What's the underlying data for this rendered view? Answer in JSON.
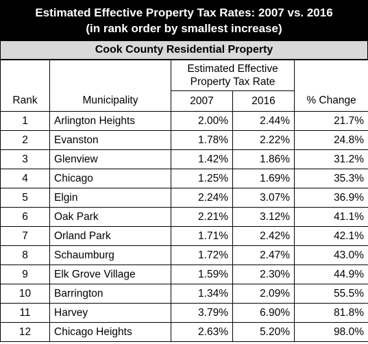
{
  "title": {
    "line1": "Estimated Effective Property Tax Rates: 2007 vs. 2016",
    "line2": "(in rank order by smallest increase)"
  },
  "subtitle": "Cook County Residential Property",
  "header": {
    "group_label_line1": "Estimated Effective",
    "group_label_line2": "Property Tax Rate",
    "rank": "Rank",
    "municipality": "Municipality",
    "year1": "2007",
    "year2": "2016",
    "change": "% Change"
  },
  "rows": [
    {
      "rank": "1",
      "municipality": "Arlington Heights",
      "y2007": "2.00%",
      "y2016": "2.44%",
      "change": "21.7%"
    },
    {
      "rank": "2",
      "municipality": "Evanston",
      "y2007": "1.78%",
      "y2016": "2.22%",
      "change": "24.8%"
    },
    {
      "rank": "3",
      "municipality": "Glenview",
      "y2007": "1.42%",
      "y2016": "1.86%",
      "change": "31.2%"
    },
    {
      "rank": "4",
      "municipality": "Chicago",
      "y2007": "1.25%",
      "y2016": "1.69%",
      "change": "35.3%"
    },
    {
      "rank": "5",
      "municipality": "Elgin",
      "y2007": "2.24%",
      "y2016": "3.07%",
      "change": "36.9%"
    },
    {
      "rank": "6",
      "municipality": "Oak Park",
      "y2007": "2.21%",
      "y2016": "3.12%",
      "change": "41.1%"
    },
    {
      "rank": "7",
      "municipality": "Orland Park",
      "y2007": "1.71%",
      "y2016": "2.42%",
      "change": "42.1%"
    },
    {
      "rank": "8",
      "municipality": "Schaumburg",
      "y2007": "1.72%",
      "y2016": "2.47%",
      "change": "43.0%"
    },
    {
      "rank": "9",
      "municipality": "Elk Grove Village",
      "y2007": "1.59%",
      "y2016": "2.30%",
      "change": "44.9%"
    },
    {
      "rank": "10",
      "municipality": "Barrington",
      "y2007": "1.34%",
      "y2016": "2.09%",
      "change": "55.5%"
    },
    {
      "rank": "11",
      "municipality": "Harvey",
      "y2007": "3.79%",
      "y2016": "6.90%",
      "change": "81.8%"
    },
    {
      "rank": "12",
      "municipality": "Chicago Heights",
      "y2007": "2.63%",
      "y2016": "5.20%",
      "change": "98.0%"
    }
  ],
  "colors": {
    "title_bg": "#000000",
    "title_text": "#ffffff",
    "subtitle_bg": "#d9d9d9",
    "grid": "#000000"
  }
}
